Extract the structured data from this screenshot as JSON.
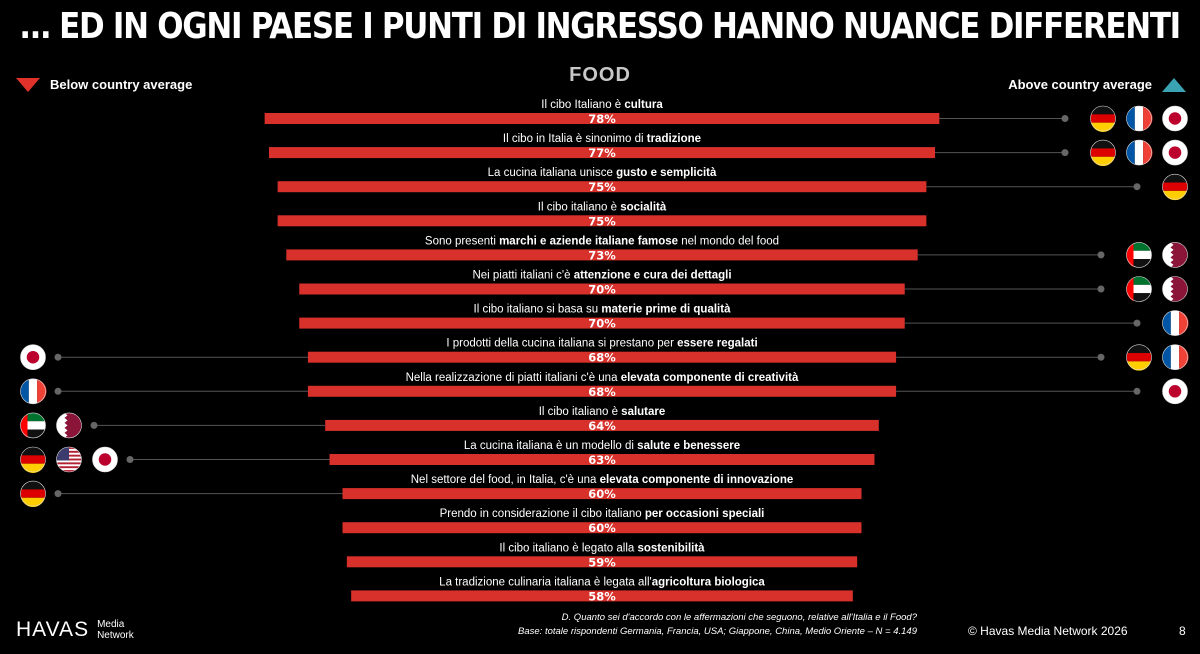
{
  "header": {
    "title": "… ED IN OGNI PAESE I PUNTI DI INGRESSO HANNO NUANCE DIFFERENTI",
    "chart_title": "FOOD"
  },
  "legend": {
    "below": "Below country average",
    "above": "Above country average",
    "below_color": "#e0322a",
    "above_color": "#39a3b3"
  },
  "chart_data": {
    "type": "bar",
    "orientation": "horizontal-centered",
    "bar_color": "#d8302a",
    "categories": [
      {
        "pre": "Il cibo Italiano è ",
        "bold": "cultura",
        "post": ""
      },
      {
        "pre": "Il cibo in Italia è sinonimo di ",
        "bold": "tradizione",
        "post": ""
      },
      {
        "pre": "La cucina italiana unisce ",
        "bold": "gusto e semplicità",
        "post": ""
      },
      {
        "pre": "Il cibo italiano è ",
        "bold": "socialità",
        "post": ""
      },
      {
        "pre": "Sono presenti ",
        "bold": "marchi e aziende italiane famose",
        "post": " nel mondo del food"
      },
      {
        "pre": "Nei piatti italiani c'è ",
        "bold": "attenzione e cura dei dettagli",
        "post": ""
      },
      {
        "pre": "Il cibo italiano si basa su ",
        "bold": "materie prime di qualità",
        "post": ""
      },
      {
        "pre": "I prodotti della cucina italiana si prestano per ",
        "bold": "essere regalati",
        "post": ""
      },
      {
        "pre": "Nella realizzazione di piatti italiani c'è una ",
        "bold": "elevata componente di creatività",
        "post": ""
      },
      {
        "pre": "Il cibo italiano è ",
        "bold": "salutare",
        "post": ""
      },
      {
        "pre": "La cucina italiana è un modello di ",
        "bold": "salute e benessere",
        "post": ""
      },
      {
        "pre": "Nel settore del food, in Italia, c'è una ",
        "bold": "elevata componente di innovazione",
        "post": ""
      },
      {
        "pre": "Prendo in  considerazione il cibo italiano ",
        "bold": "per occasioni speciali",
        "post": ""
      },
      {
        "pre": "Il cibo italiano è legato alla ",
        "bold": "sostenibilità",
        "post": ""
      },
      {
        "pre": "La tradizione culinaria italiana è legata all'",
        "bold": "agricoltura biologica",
        "post": ""
      }
    ],
    "values": [
      78,
      77,
      75,
      75,
      73,
      70,
      70,
      68,
      68,
      64,
      63,
      60,
      60,
      59,
      58
    ],
    "value_labels": [
      "78%",
      "77%",
      "75%",
      "75%",
      "73%",
      "70%",
      "70%",
      "68%",
      "68%",
      "64%",
      "63%",
      "60%",
      "60%",
      "59%",
      "58%"
    ],
    "above_country_average": [
      [
        "germany",
        "france",
        "japan"
      ],
      [
        "germany",
        "france",
        "japan"
      ],
      [
        "germany"
      ],
      [],
      [
        "uae",
        "qatar"
      ],
      [
        "uae",
        "qatar"
      ],
      [
        "france"
      ],
      [
        "germany",
        "france"
      ],
      [
        "japan"
      ],
      [],
      [],
      [],
      [],
      [],
      []
    ],
    "below_country_average": [
      [],
      [],
      [],
      [],
      [],
      [],
      [],
      [
        "japan"
      ],
      [
        "france"
      ],
      [
        "uae",
        "qatar"
      ],
      [
        "germany",
        "usa",
        "japan"
      ],
      [
        "germany"
      ],
      [],
      [],
      []
    ]
  },
  "footer": {
    "question": "D. Quanto sei d'accordo con le affermazioni che seguono, relative all'Italia e il Food?",
    "base": "Base: totale rispondenti Germania, Francia, USA; Giappone, China, Medio Oriente – N = 4.149",
    "logo_word": "HAVAS",
    "logo_sub_1": "Media",
    "logo_sub_2": "Network",
    "copyright": "© Havas Media Network 2026",
    "page_number": "8"
  }
}
